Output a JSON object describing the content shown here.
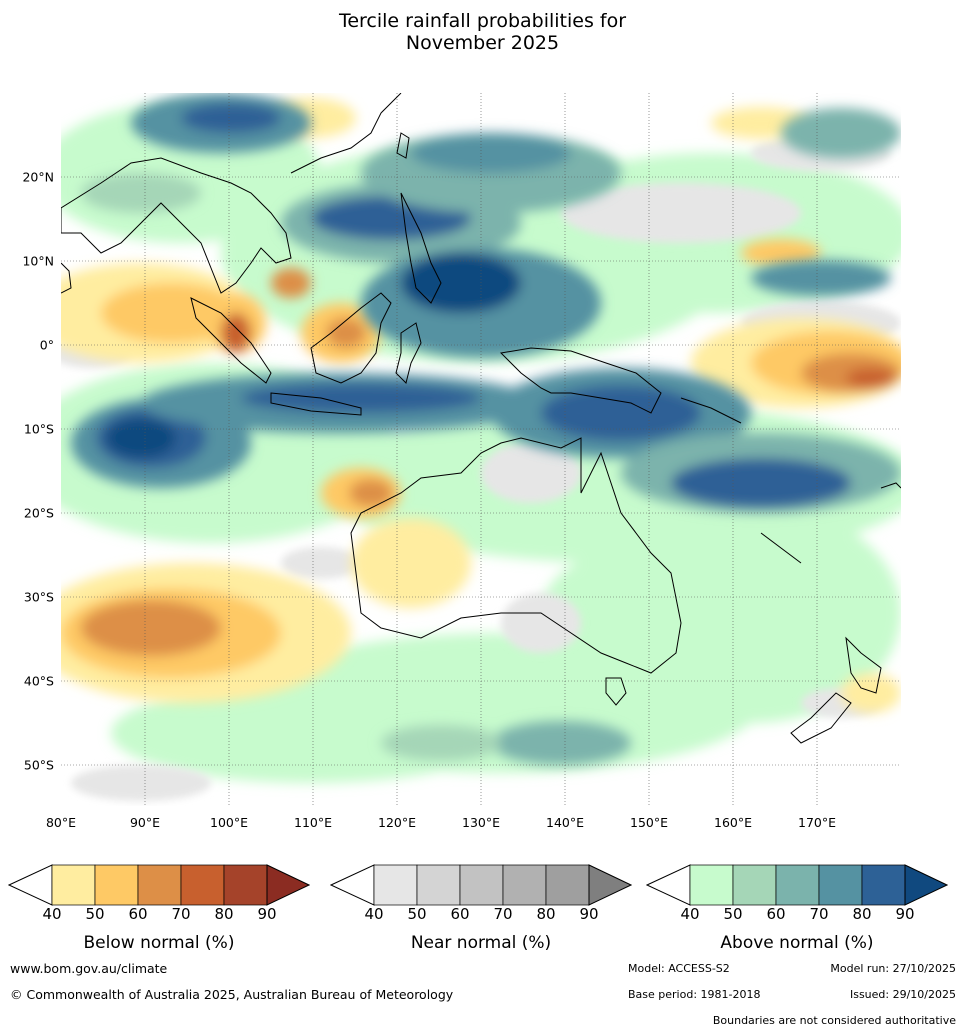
{
  "title_line1": "Tercile rainfall probabilities for",
  "title_line2": "November 2025",
  "map": {
    "lon_labels": [
      "80°E",
      "90°E",
      "100°E",
      "110°E",
      "120°E",
      "130°E",
      "140°E",
      "150°E",
      "160°E",
      "170°E"
    ],
    "lat_labels": [
      "20°N",
      "10°N",
      "0°",
      "10°S",
      "20°S",
      "30°S",
      "40°S",
      "50°S"
    ],
    "lon_range": [
      80,
      180
    ],
    "lat_range": [
      -55,
      30
    ]
  },
  "colorbars": [
    {
      "title": "Below normal (%)",
      "ticks": [
        "40",
        "50",
        "60",
        "70",
        "80",
        "90"
      ],
      "colors": [
        "#ffeda0",
        "#fec965",
        "#dd8f47",
        "#c8602e",
        "#a5432a",
        "#8b2c22"
      ]
    },
    {
      "title": "Near normal (%)",
      "ticks": [
        "40",
        "50",
        "60",
        "70",
        "80",
        "90"
      ],
      "colors": [
        "#e6e6e6",
        "#d4d4d4",
        "#c2c2c2",
        "#b1b1b1",
        "#9f9f9f",
        "#7f7f7f"
      ]
    },
    {
      "title": "Above normal (%)",
      "ticks": [
        "40",
        "50",
        "60",
        "70",
        "80",
        "90"
      ],
      "colors": [
        "#c7fbcd",
        "#a5d6b7",
        "#7bb3ac",
        "#5592a2",
        "#2d6196",
        "#10497f"
      ]
    }
  ],
  "footer": {
    "website": "www.bom.gov.au/climate",
    "copyright": "© Commonwealth of Australia 2025, Australian Bureau of Meteorology",
    "model": "Model: ACCESS-S2",
    "model_run": "Model run: 27/10/2025",
    "base_period": "Base period: 1981-2018",
    "issued": "Issued: 29/10/2025",
    "disclaimer": "Boundaries are not considered authoritative"
  }
}
